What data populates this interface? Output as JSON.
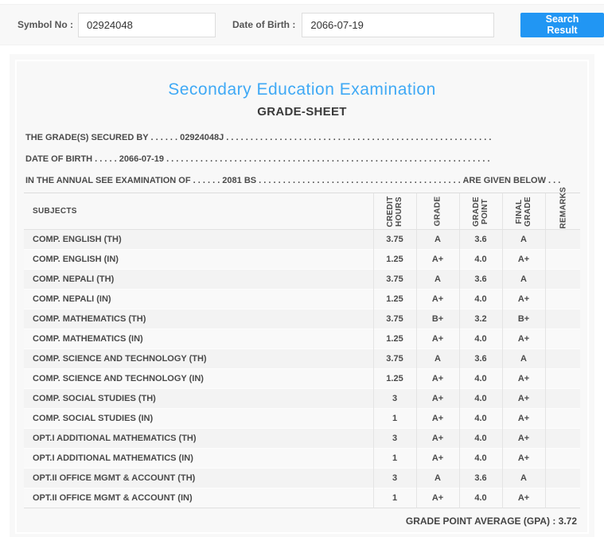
{
  "colors": {
    "accent_button": "#2196f3",
    "title_blue": "#3fa9f5",
    "panel_bg": "#f8f8f8"
  },
  "search_bar": {
    "symbol_label": "Symbol No :",
    "symbol_value": "02924048",
    "dob_label": "Date of Birth :",
    "dob_value": "2066-07-19",
    "button_label": "Search Result"
  },
  "certificate": {
    "title": "Secondary Education Examination",
    "subtitle": "GRADE-SHEET",
    "line_secured_by": "THE GRADE(S) SECURED BY . . . . . . 02924048J . . . . . . . . . . . . . . . . . . . . . . . . . . . . . . . . . . . . . . . . . . . . . . . . . . . . . . .",
    "line_dob": "DATE OF BIRTH . . . . . 2066-07-19 . . . . . . . . . . . . . . . . . . . . . . . . . . . . . . . . . . . . . . . . . . . . . . . . . . . . . . . . . . . . . . . . . . .",
    "line_exam": "IN THE ANNUAL SEE EXAMINATION OF . . . . . . 2081 BS . . . . . . . . . . . . . . . . . . . . . . . . . . . . . . . . . . . . . . . . . . ARE GIVEN BELOW . . ."
  },
  "table": {
    "headers": [
      "SUBJECTS",
      "CREDIT HOURS",
      "GRADE",
      "GRADE POINT",
      "FINAL GRADE",
      "REMARKS"
    ],
    "rows": [
      {
        "subject": "COMP. ENGLISH (TH)",
        "credit_hours": "3.75",
        "grade": "A",
        "grade_point": "3.6",
        "final_grade": "A",
        "remarks": ""
      },
      {
        "subject": "COMP. ENGLISH (IN)",
        "credit_hours": "1.25",
        "grade": "A+",
        "grade_point": "4.0",
        "final_grade": "A+",
        "remarks": ""
      },
      {
        "subject": "COMP. NEPALI (TH)",
        "credit_hours": "3.75",
        "grade": "A",
        "grade_point": "3.6",
        "final_grade": "A",
        "remarks": ""
      },
      {
        "subject": "COMP. NEPALI (IN)",
        "credit_hours": "1.25",
        "grade": "A+",
        "grade_point": "4.0",
        "final_grade": "A+",
        "remarks": ""
      },
      {
        "subject": "COMP. MATHEMATICS (TH)",
        "credit_hours": "3.75",
        "grade": "B+",
        "grade_point": "3.2",
        "final_grade": "B+",
        "remarks": ""
      },
      {
        "subject": "COMP. MATHEMATICS (IN)",
        "credit_hours": "1.25",
        "grade": "A+",
        "grade_point": "4.0",
        "final_grade": "A+",
        "remarks": ""
      },
      {
        "subject": "COMP. SCIENCE AND TECHNOLOGY (TH)",
        "credit_hours": "3.75",
        "grade": "A",
        "grade_point": "3.6",
        "final_grade": "A",
        "remarks": ""
      },
      {
        "subject": "COMP. SCIENCE AND TECHNOLOGY (IN)",
        "credit_hours": "1.25",
        "grade": "A+",
        "grade_point": "4.0",
        "final_grade": "A+",
        "remarks": ""
      },
      {
        "subject": "COMP. SOCIAL STUDIES (TH)",
        "credit_hours": "3",
        "grade": "A+",
        "grade_point": "4.0",
        "final_grade": "A+",
        "remarks": ""
      },
      {
        "subject": "COMP. SOCIAL STUDIES (IN)",
        "credit_hours": "1",
        "grade": "A+",
        "grade_point": "4.0",
        "final_grade": "A+",
        "remarks": ""
      },
      {
        "subject": "OPT.I ADDITIONAL MATHEMATICS (TH)",
        "credit_hours": "3",
        "grade": "A+",
        "grade_point": "4.0",
        "final_grade": "A+",
        "remarks": ""
      },
      {
        "subject": "OPT.I ADDITIONAL MATHEMATICS (IN)",
        "credit_hours": "1",
        "grade": "A+",
        "grade_point": "4.0",
        "final_grade": "A+",
        "remarks": ""
      },
      {
        "subject": "OPT.II OFFICE MGMT & ACCOUNT (TH)",
        "credit_hours": "3",
        "grade": "A",
        "grade_point": "3.6",
        "final_grade": "A",
        "remarks": ""
      },
      {
        "subject": "OPT.II OFFICE MGMT & ACCOUNT (IN)",
        "credit_hours": "1",
        "grade": "A+",
        "grade_point": "4.0",
        "final_grade": "A+",
        "remarks": ""
      }
    ]
  },
  "footer": {
    "gpa_label": "GRADE POINT AVERAGE (GPA) : 3.72"
  }
}
